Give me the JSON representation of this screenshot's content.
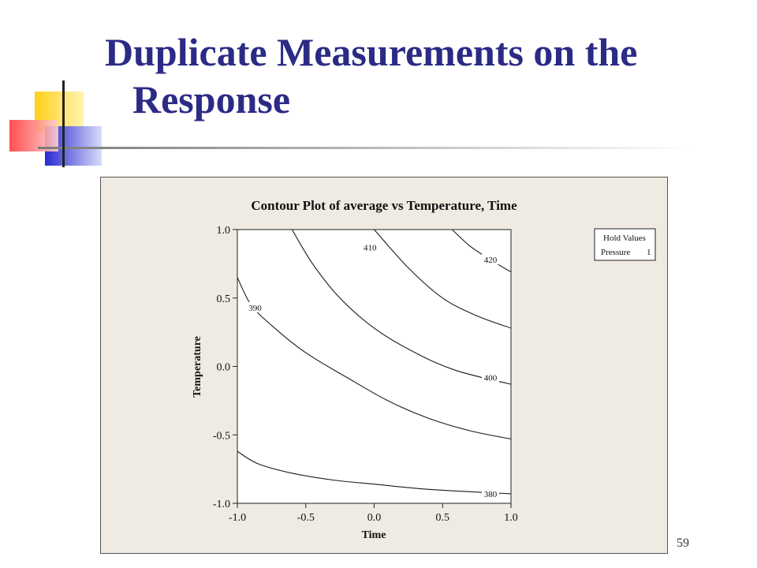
{
  "slide": {
    "title_line1": "Duplicate Measurements on the",
    "title_line2": "Response",
    "page_number": "59",
    "title_color": "#2b2b86"
  },
  "chart_data": {
    "type": "contour",
    "title": "Contour Plot of average vs Temperature, Time",
    "xlabel": "Time",
    "ylabel": "Temperature",
    "xlim": [
      -1.0,
      1.0
    ],
    "ylim": [
      -1.0,
      1.0
    ],
    "xticks": [
      "-1.0",
      "-0.5",
      "0.0",
      "0.5",
      "1.0"
    ],
    "yticks": [
      "-1.0",
      "-0.5",
      "0.0",
      "0.5",
      "1.0"
    ],
    "grid": false,
    "hold_values": {
      "heading": "Hold Values",
      "label": "Pressure",
      "value": "1"
    },
    "contours": [
      {
        "level": "380",
        "points": [
          [
            -1.0,
            -0.62
          ],
          [
            -0.85,
            -0.71
          ],
          [
            -0.6,
            -0.78
          ],
          [
            -0.3,
            -0.83
          ],
          [
            0.0,
            -0.86
          ],
          [
            0.3,
            -0.89
          ],
          [
            0.6,
            -0.91
          ],
          [
            1.0,
            -0.93
          ]
        ],
        "label_at": [
          0.85,
          -0.93
        ]
      },
      {
        "level": "390",
        "points": [
          [
            -1.0,
            0.65
          ],
          [
            -0.9,
            0.45
          ],
          [
            -0.75,
            0.3
          ],
          [
            -0.5,
            0.1
          ],
          [
            -0.2,
            -0.08
          ],
          [
            0.1,
            -0.25
          ],
          [
            0.4,
            -0.38
          ],
          [
            0.7,
            -0.47
          ],
          [
            1.0,
            -0.53
          ]
        ],
        "label_at": [
          -0.87,
          0.43
        ]
      },
      {
        "level": "400",
        "points": [
          [
            -0.6,
            1.0
          ],
          [
            -0.45,
            0.75
          ],
          [
            -0.25,
            0.5
          ],
          [
            0.0,
            0.28
          ],
          [
            0.3,
            0.1
          ],
          [
            0.6,
            -0.03
          ],
          [
            1.0,
            -0.13
          ]
        ],
        "label_at": [
          0.85,
          -0.08
        ]
      },
      {
        "level": "410",
        "points": [
          [
            0.0,
            1.0
          ],
          [
            0.25,
            0.72
          ],
          [
            0.5,
            0.5
          ],
          [
            0.75,
            0.37
          ],
          [
            1.0,
            0.28
          ]
        ],
        "label_at": [
          -0.03,
          0.87
        ]
      },
      {
        "level": "420",
        "points": [
          [
            0.57,
            1.0
          ],
          [
            0.7,
            0.88
          ],
          [
            0.85,
            0.78
          ],
          [
            1.0,
            0.69
          ]
        ],
        "label_at": [
          0.85,
          0.78
        ]
      }
    ]
  }
}
